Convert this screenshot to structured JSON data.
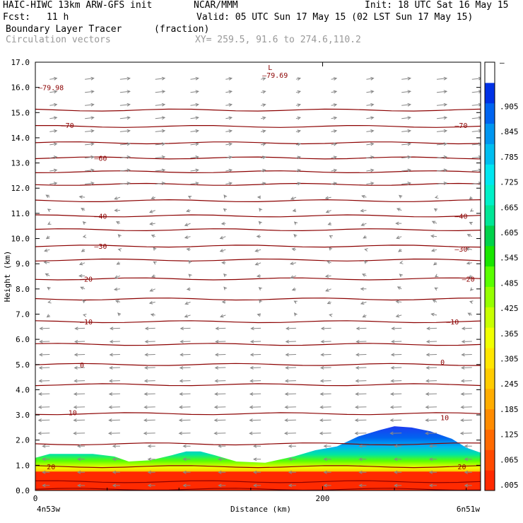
{
  "header": {
    "model": "HAIC-HIWC 13km ARW-GFS init",
    "org": "NCAR/MMM",
    "init": "Init: 18 UTC Sat 16 May 15",
    "fcst_label": "Fcst:",
    "fcst_value": "11 h",
    "valid": "Valid: 05 UTC Sun 17 May 15 (02 LST Sun 17 May 15)",
    "field1": "Boundary Layer Tracer",
    "field1_units": "(fraction)",
    "field2": "Circulation vectors",
    "xy": "XY= 259.5, 91.6 to 274.6,110.2"
  },
  "colors": {
    "contour": "#8b0000",
    "vector": "#888888",
    "colorbar": [
      "#ff2a00",
      "#ff4a00",
      "#ff6a00",
      "#ff8c00",
      "#ffad00",
      "#ffcc00",
      "#ffe600",
      "#f0ff00",
      "#c8ff00",
      "#96ff00",
      "#5aff00",
      "#19e600",
      "#00d24b",
      "#00e696",
      "#00f0c8",
      "#00e6f0",
      "#00bef0",
      "#0096f0",
      "#0064f0",
      "#0032e6",
      "#ffffff"
    ]
  },
  "chart_data": {
    "type": "heatmap",
    "title": "Boundary Layer Tracer",
    "units": "(fraction)",
    "xlabel": "Distance (km)",
    "ylabel": "Height (km)",
    "xlim": [
      0,
      310
    ],
    "ylim": [
      0,
      17
    ],
    "x_ticks": [
      "0",
      "200"
    ],
    "x_tick_values": [
      0,
      200
    ],
    "y_ticks": [
      "0.0",
      "1.0",
      "2.0",
      "3.0",
      "4.0",
      "5.0",
      "6.0",
      "7.0",
      "8.0",
      "9.0",
      "10.0",
      "11.0",
      "12.0",
      "13.0",
      "14.0",
      "15.0",
      "16.0",
      "17.0"
    ],
    "x_start": "4n53w",
    "x_end": "6n51w",
    "colorbar_labels": [
      ".005",
      ".065",
      ".125",
      ".185",
      ".245",
      ".305",
      ".365",
      ".425",
      ".485",
      ".545",
      ".605",
      ".665",
      ".725",
      ".785",
      ".845",
      ".905",
      "–"
    ],
    "contour_labels": [
      {
        "text": "–79.98",
        "x": 2,
        "y": 16.0
      },
      {
        "text": "–79.69",
        "x": 158,
        "y": 16.5
      },
      {
        "text": "L",
        "x": 162,
        "y": 16.8
      },
      {
        "text": "–70",
        "x": 18,
        "y": 14.5
      },
      {
        "text": "–70",
        "x": 292,
        "y": 14.5
      },
      {
        "text": "–60",
        "x": 41,
        "y": 13.2
      },
      {
        "text": "–40",
        "x": 41,
        "y": 10.9
      },
      {
        "text": "–40",
        "x": 292,
        "y": 10.9
      },
      {
        "text": "–30",
        "x": 41,
        "y": 9.7
      },
      {
        "text": "–30",
        "x": 292,
        "y": 9.6
      },
      {
        "text": "–20",
        "x": 31,
        "y": 8.4
      },
      {
        "text": "–20",
        "x": 297,
        "y": 8.4
      },
      {
        "text": "–10",
        "x": 31,
        "y": 6.7
      },
      {
        "text": "–10",
        "x": 286,
        "y": 6.7
      },
      {
        "text": "0",
        "x": 31,
        "y": 5.0
      },
      {
        "text": "0",
        "x": 282,
        "y": 5.1
      },
      {
        "text": "10",
        "x": 23,
        "y": 3.1
      },
      {
        "text": "10",
        "x": 282,
        "y": 2.9
      },
      {
        "text": "20",
        "x": 8,
        "y": 0.95
      },
      {
        "text": "20",
        "x": 294,
        "y": 0.95
      }
    ],
    "temperature_contours": [
      0.05,
      0.35,
      0.95,
      1.85,
      3.05,
      4.2,
      5.0,
      5.8,
      6.7,
      7.6,
      8.4,
      9.15,
      9.7,
      10.35,
      10.9,
      11.5,
      12.15,
      12.65,
      13.2,
      13.8,
      14.45,
      15.1
    ],
    "tracer_top": {
      "x": [
        0,
        10,
        20,
        40,
        55,
        65,
        80,
        95,
        105,
        115,
        125,
        140,
        160,
        180,
        195,
        210,
        225,
        240,
        250,
        262,
        275,
        290,
        300,
        310
      ],
      "y": [
        1.3,
        1.45,
        1.45,
        1.45,
        1.35,
        1.15,
        1.2,
        1.4,
        1.55,
        1.55,
        1.4,
        1.15,
        1.1,
        1.35,
        1.6,
        1.75,
        2.15,
        2.4,
        2.55,
        2.5,
        2.35,
        2.05,
        1.7,
        1.5
      ]
    }
  }
}
